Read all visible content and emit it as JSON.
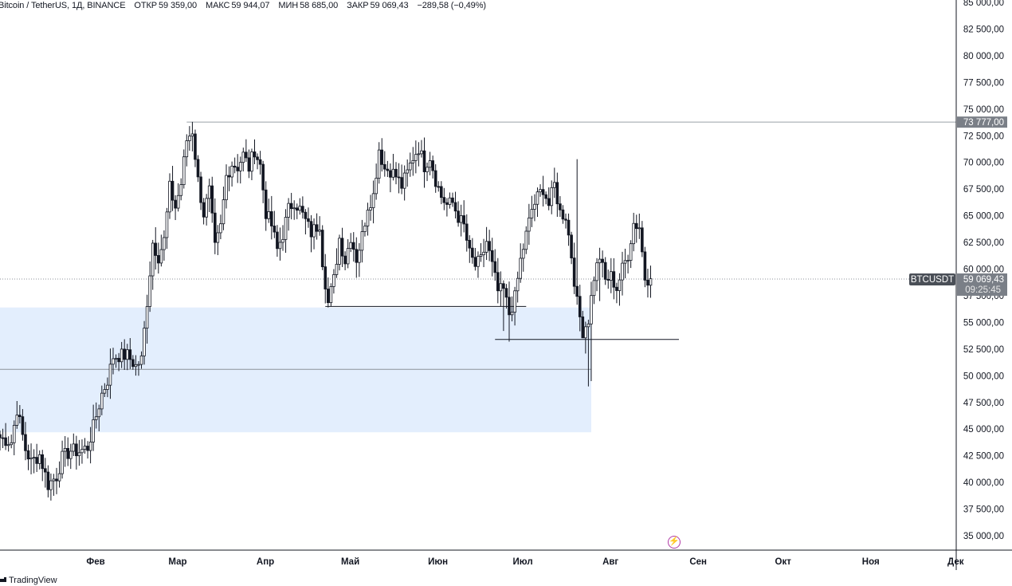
{
  "header": {
    "title": "Bitcoin / TetherUS, 1Д, BINANCE",
    "open_label": "ОТКР",
    "open": "59 359,00",
    "high_label": "МАКС",
    "high": "59 944,07",
    "low_label": "МИН",
    "low": "58 685,00",
    "close_label": "ЗАКР",
    "close": "59 069,43",
    "change": "−289,58 (−0,49%)"
  },
  "footer": {
    "brand": "TradingView"
  },
  "colors": {
    "candle": "#131722",
    "zone": "#e3eefd",
    "price_tag": "#7a7f87",
    "symbol_tag": "#4a4f57",
    "lightning": "#b03aa6"
  },
  "icons": {
    "event": "lightning-icon",
    "brand": "tradingview-logo-icon"
  },
  "chart_data": {
    "type": "candlestick",
    "symbol": "BTCUSDT",
    "ylim": [
      33500,
      85000
    ],
    "y_ticks": [
      "85 000,00",
      "82 500,00",
      "80 000,00",
      "77 500,00",
      "75 000,00",
      "72 500,00",
      "70 000,00",
      "67 500,00",
      "65 000,00",
      "62 500,00",
      "60 000,00",
      "57 500,00",
      "55 000,00",
      "52 500,00",
      "50 000,00",
      "47 500,00",
      "45 000,00",
      "42 500,00",
      "40 000,00",
      "37 500,00",
      "35 000,00"
    ],
    "y_tick_values": [
      85000,
      82500,
      80000,
      77500,
      75000,
      72500,
      70000,
      67500,
      65000,
      62500,
      60000,
      57500,
      55000,
      52500,
      50000,
      47500,
      45000,
      42500,
      40000,
      37500,
      35000
    ],
    "x_ticks": [
      "Фев",
      "Мар",
      "Апр",
      "Май",
      "Июн",
      "Июл",
      "Авг",
      "Сен",
      "Окт",
      "Ноя",
      "Дек"
    ],
    "x_tick_days": [
      31,
      60,
      91,
      121,
      152,
      182,
      213,
      244,
      274,
      305,
      335
    ],
    "last_price": 59069.43,
    "last_price_label": "59 069,43",
    "countdown": "09:25:45",
    "symbol_label": "BTCUSDT",
    "ath_level": 73777,
    "ath_label": "73 777,00",
    "levels": [
      {
        "price": 56500,
        "from_day": 115,
        "to_day": 186
      },
      {
        "price": 53400,
        "from_day": 175,
        "to_day": 240
      },
      {
        "price": 50600,
        "from_day": 0,
        "to_day": 209
      }
    ],
    "zone": {
      "from_price": 44700,
      "to_price": 56400,
      "from_day": 0,
      "to_day": 209
    },
    "anchors_close": [
      [
        0,
        44200
      ],
      [
        4,
        43800
      ],
      [
        6,
        46900
      ],
      [
        9,
        43100
      ],
      [
        11,
        41900
      ],
      [
        14,
        42600
      ],
      [
        17,
        39800
      ],
      [
        20,
        40600
      ],
      [
        22,
        42300
      ],
      [
        25,
        43000
      ],
      [
        28,
        42900
      ],
      [
        31,
        43300
      ],
      [
        33,
        45200
      ],
      [
        36,
        48300
      ],
      [
        38,
        49600
      ],
      [
        40,
        51800
      ],
      [
        42,
        51900
      ],
      [
        45,
        51900
      ],
      [
        48,
        50900
      ],
      [
        50,
        51500
      ],
      [
        52,
        57000
      ],
      [
        54,
        62500
      ],
      [
        56,
        61200
      ],
      [
        58,
        62700
      ],
      [
        60,
        67600
      ],
      [
        62,
        65800
      ],
      [
        64,
        68000
      ],
      [
        66,
        72100
      ],
      [
        68,
        73000
      ],
      [
        70,
        68300
      ],
      [
        72,
        65200
      ],
      [
        74,
        67300
      ],
      [
        76,
        61900
      ],
      [
        78,
        63900
      ],
      [
        80,
        68700
      ],
      [
        82,
        69900
      ],
      [
        84,
        69600
      ],
      [
        86,
        70700
      ],
      [
        88,
        69500
      ],
      [
        90,
        71200
      ],
      [
        92,
        69700
      ],
      [
        94,
        65300
      ],
      [
        96,
        64100
      ],
      [
        98,
        61800
      ],
      [
        100,
        63300
      ],
      [
        102,
        65600
      ],
      [
        104,
        66400
      ],
      [
        106,
        65600
      ],
      [
        108,
        64500
      ],
      [
        110,
        63400
      ],
      [
        113,
        64300
      ],
      [
        114,
        60800
      ],
      [
        116,
        56800
      ],
      [
        118,
        59000
      ],
      [
        120,
        62900
      ],
      [
        122,
        60800
      ],
      [
        124,
        63100
      ],
      [
        126,
        61000
      ],
      [
        128,
        63100
      ],
      [
        130,
        66000
      ],
      [
        132,
        66900
      ],
      [
        134,
        71300
      ],
      [
        136,
        69400
      ],
      [
        138,
        69300
      ],
      [
        140,
        68700
      ],
      [
        142,
        67800
      ],
      [
        144,
        69000
      ],
      [
        146,
        70500
      ],
      [
        148,
        71400
      ],
      [
        150,
        69700
      ],
      [
        152,
        70600
      ],
      [
        154,
        68400
      ],
      [
        156,
        66800
      ],
      [
        158,
        66000
      ],
      [
        160,
        66200
      ],
      [
        162,
        64900
      ],
      [
        164,
        64000
      ],
      [
        166,
        61400
      ],
      [
        168,
        60300
      ],
      [
        170,
        60800
      ],
      [
        172,
        62600
      ],
      [
        174,
        60300
      ],
      [
        176,
        57900
      ],
      [
        178,
        58000
      ],
      [
        180,
        55800
      ],
      [
        182,
        57300
      ],
      [
        184,
        60800
      ],
      [
        186,
        63200
      ],
      [
        188,
        65600
      ],
      [
        190,
        66700
      ],
      [
        192,
        67600
      ],
      [
        194,
        66000
      ],
      [
        196,
        67900
      ],
      [
        198,
        65300
      ],
      [
        200,
        65000
      ],
      [
        202,
        61300
      ],
      [
        204,
        56800
      ],
      [
        206,
        54200
      ],
      [
        208,
        55300
      ],
      [
        210,
        59300
      ],
      [
        212,
        61200
      ],
      [
        214,
        58900
      ],
      [
        216,
        59300
      ],
      [
        218,
        58200
      ],
      [
        220,
        60000
      ],
      [
        222,
        61400
      ],
      [
        224,
        64300
      ],
      [
        226,
        64000
      ],
      [
        228,
        59200
      ],
      [
        230,
        59100
      ]
    ]
  }
}
